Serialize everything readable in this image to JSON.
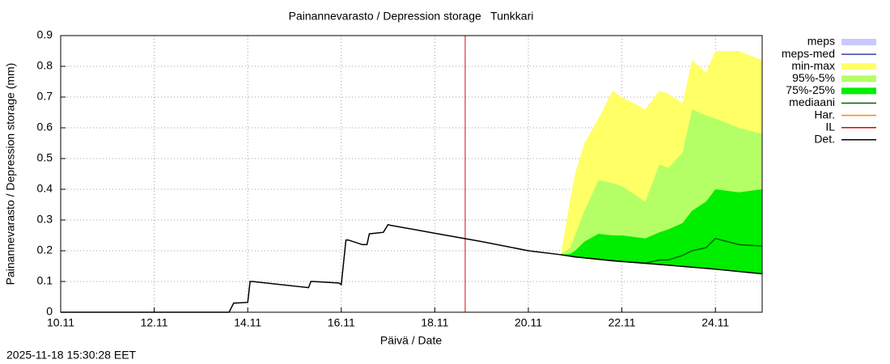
{
  "chart_data": {
    "type": "line",
    "title": "Painannevarasto / Depression storage   Tunkkari",
    "x_label": "Päivä / Date",
    "y_label": "Painannevarasto / Depression storage (mm)",
    "timestamp": "2025-11-18 15:30:28 EET",
    "xlim": [
      10,
      25
    ],
    "ylim": [
      0,
      0.9
    ],
    "xticks": [
      {
        "value": 10,
        "label": "10.11"
      },
      {
        "value": 12,
        "label": "12.11"
      },
      {
        "value": 14,
        "label": "14.11"
      },
      {
        "value": 16,
        "label": "16.11"
      },
      {
        "value": 18,
        "label": "18.11"
      },
      {
        "value": 20,
        "label": "20.11"
      },
      {
        "value": 22,
        "label": "22.11"
      },
      {
        "value": 24,
        "label": "24.11"
      }
    ],
    "yticks": [
      0,
      0.1,
      0.2,
      0.3,
      0.4,
      0.5,
      0.6,
      0.7,
      0.8,
      0.9
    ],
    "grid": true,
    "legend": "right",
    "series": [
      {
        "name": "meps",
        "color": "#c8c8ff",
        "kind": "band"
      },
      {
        "name": "meps-med",
        "color": "#3c3cb4",
        "kind": "line"
      },
      {
        "name": "min-max",
        "color": "#ffff66",
        "kind": "band",
        "x": [
          20.7,
          20.9,
          21.0,
          21.2,
          21.5,
          21.8,
          22.0,
          22.5,
          22.8,
          23.0,
          23.3,
          23.5,
          23.8,
          24.0,
          24.5,
          25.0
        ],
        "upper": [
          0.19,
          0.37,
          0.45,
          0.55,
          0.63,
          0.72,
          0.7,
          0.66,
          0.72,
          0.71,
          0.68,
          0.82,
          0.78,
          0.85,
          0.85,
          0.82
        ],
        "lower": [
          0.187,
          0.183,
          0.18,
          0.177,
          0.172,
          0.167,
          0.165,
          0.159,
          0.155,
          0.153,
          0.149,
          0.147,
          0.143,
          0.14,
          0.133,
          0.125
        ]
      },
      {
        "name": "95%-5%",
        "color": "#b4ff66",
        "kind": "band",
        "x": [
          20.7,
          20.9,
          21.0,
          21.2,
          21.5,
          21.8,
          22.0,
          22.5,
          22.8,
          23.0,
          23.3,
          23.5,
          23.8,
          24.0,
          24.5,
          25.0
        ],
        "upper": [
          0.19,
          0.21,
          0.25,
          0.33,
          0.43,
          0.42,
          0.41,
          0.36,
          0.48,
          0.47,
          0.52,
          0.66,
          0.64,
          0.63,
          0.6,
          0.58
        ],
        "lower": [
          0.187,
          0.183,
          0.18,
          0.177,
          0.172,
          0.167,
          0.165,
          0.159,
          0.155,
          0.153,
          0.149,
          0.147,
          0.143,
          0.14,
          0.133,
          0.125
        ]
      },
      {
        "name": "75%-25%",
        "color": "#00ee00",
        "kind": "band",
        "x": [
          20.7,
          20.9,
          21.0,
          21.2,
          21.5,
          21.8,
          22.0,
          22.5,
          22.8,
          23.0,
          23.3,
          23.5,
          23.8,
          24.0,
          24.5,
          25.0
        ],
        "upper": [
          0.187,
          0.19,
          0.2,
          0.23,
          0.255,
          0.25,
          0.25,
          0.24,
          0.26,
          0.27,
          0.29,
          0.33,
          0.36,
          0.4,
          0.39,
          0.4
        ],
        "lower": [
          0.187,
          0.183,
          0.18,
          0.177,
          0.172,
          0.167,
          0.165,
          0.159,
          0.155,
          0.153,
          0.149,
          0.147,
          0.143,
          0.14,
          0.133,
          0.125
        ]
      },
      {
        "name": "mediaani",
        "color": "#006400",
        "kind": "line",
        "x": [
          20.7,
          20.9,
          21.0,
          21.2,
          21.5,
          21.8,
          22.0,
          22.5,
          22.8,
          23.0,
          23.3,
          23.5,
          23.8,
          24.0,
          24.5,
          25.0
        ],
        "values": [
          0.187,
          0.183,
          0.18,
          0.177,
          0.172,
          0.167,
          0.165,
          0.16,
          0.17,
          0.17,
          0.185,
          0.2,
          0.21,
          0.24,
          0.22,
          0.215
        ]
      },
      {
        "name": "Har.",
        "color": "#ff8c00",
        "kind": "line"
      },
      {
        "name": "IL",
        "color": "#e00000",
        "kind": "vline",
        "x": 18.65
      },
      {
        "name": "Det.",
        "color": "#000000",
        "kind": "line",
        "x": [
          10,
          13.6,
          13.7,
          13.75,
          14.0,
          14.05,
          14.1,
          15.3,
          15.35,
          15.4,
          15.95,
          16.0,
          16.1,
          16.15,
          16.45,
          16.55,
          16.6,
          16.9,
          17.0,
          17.05,
          18.0,
          19.0,
          20.0,
          20.7,
          21.0,
          22.0,
          23.0,
          24.0,
          25.0
        ],
        "values": [
          0,
          0,
          0.03,
          0.03,
          0.032,
          0.1,
          0.1,
          0.08,
          0.1,
          0.1,
          0.095,
          0.09,
          0.235,
          0.235,
          0.22,
          0.22,
          0.255,
          0.26,
          0.285,
          0.283,
          0.257,
          0.23,
          0.2,
          0.187,
          0.18,
          0.165,
          0.153,
          0.14,
          0.125
        ]
      }
    ]
  }
}
